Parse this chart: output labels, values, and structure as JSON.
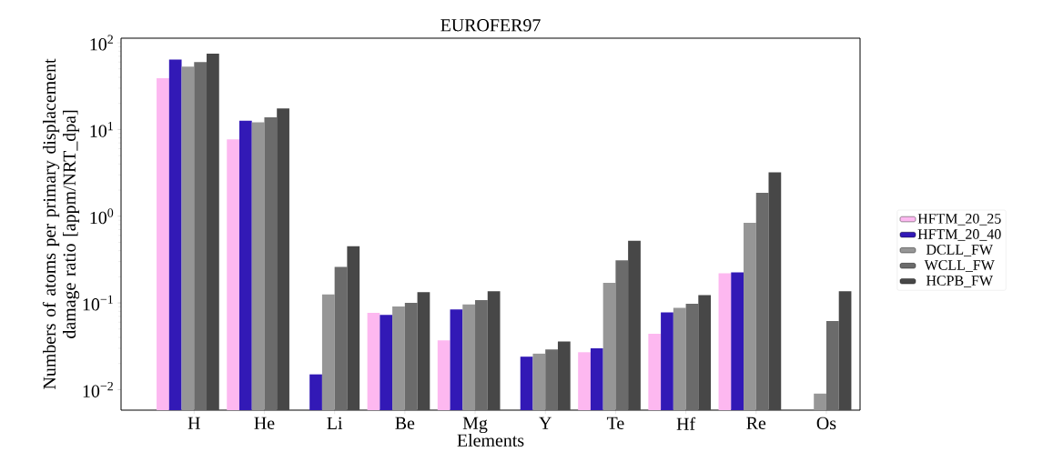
{
  "chart_data": {
    "type": "bar",
    "title": "EUROFER97",
    "xlabel": "Elements",
    "ylabel": "Numbers of atoms per primary displacement damage ratio [appm/NRT_dpa]",
    "categories": [
      "H",
      "He",
      "Li",
      "Be",
      "Mg",
      "Y",
      "Te",
      "Hf",
      "Re",
      "Os"
    ],
    "series": [
      {
        "name": "HFTM_20_25",
        "color": "#fdb8f0",
        "values": [
          39,
          7.7,
          null,
          0.077,
          0.037,
          null,
          0.027,
          0.044,
          0.22,
          null
        ]
      },
      {
        "name": "HFTM_20_40",
        "color": "#3219b6",
        "values": [
          64,
          12.6,
          0.015,
          0.073,
          0.084,
          0.024,
          0.03,
          0.078,
          0.225,
          null
        ]
      },
      {
        "name": "DCLL_FW",
        "color": "#969696",
        "values": [
          53,
          12.1,
          0.125,
          0.091,
          0.096,
          0.026,
          0.17,
          0.088,
          0.84,
          0.009
        ]
      },
      {
        "name": "WCLL_FW",
        "color": "#6b6b6b",
        "values": [
          60,
          13.8,
          0.26,
          0.1,
          0.108,
          0.029,
          0.31,
          0.098,
          1.86,
          0.062
        ]
      },
      {
        "name": "HCPB_FW",
        "color": "#474747",
        "values": [
          75,
          17.5,
          0.45,
          0.133,
          0.136,
          0.036,
          0.52,
          0.123,
          3.2,
          0.136
        ]
      }
    ],
    "log": "y",
    "ylim": [
      0.0058,
      113
    ],
    "yticks": [
      {
        "value": 0.01,
        "label": "10$^{−2}$"
      },
      {
        "value": 0.1,
        "label": "10$^{−1}$"
      },
      {
        "value": 1,
        "label": "10$^{0}$"
      },
      {
        "value": 10,
        "label": "10$^{1}$"
      },
      {
        "value": 100,
        "label": "10$^{2}$"
      }
    ],
    "legend": "right",
    "grid": false
  }
}
